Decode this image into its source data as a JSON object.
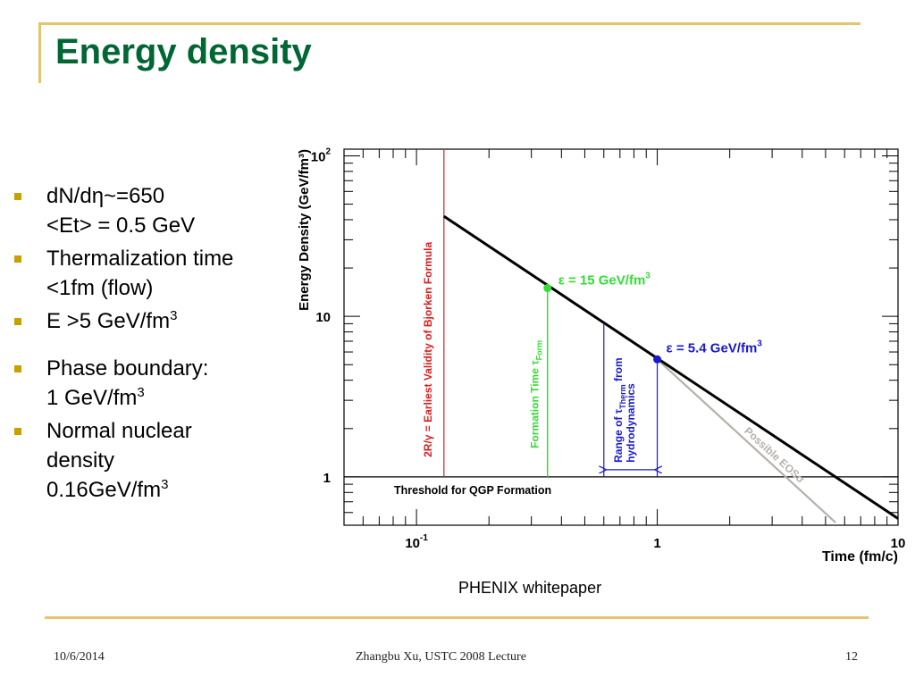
{
  "slide": {
    "title": "Energy density",
    "caption": "PHENIX whitepaper",
    "footer": {
      "date": "10/6/2014",
      "center": "Zhangbu Xu, USTC 2008 Lecture",
      "page": "12"
    }
  },
  "bullets": [
    {
      "lines": [
        {
          "text": "dN/dη~=650"
        },
        {
          "text": "<Et> = 0.5 GeV"
        }
      ]
    },
    {
      "lines": [
        {
          "text": "Thermalization time"
        },
        {
          "text": "<1fm (flow)"
        }
      ]
    },
    {
      "lines": [
        {
          "text": "E >5 GeV/fm",
          "sup": "3"
        }
      ]
    },
    {
      "gap": true,
      "lines": [
        {
          "text": "Phase boundary:"
        },
        {
          "text": "1 GeV/fm",
          "sup": "3"
        }
      ]
    },
    {
      "lines": [
        {
          "text": "Normal nuclear"
        },
        {
          "text": "density"
        },
        {
          "text": "0.16GeV/fm",
          "sup": "3"
        }
      ]
    }
  ],
  "colors": {
    "title": "#006633",
    "rule": "#e4c56a",
    "bullet": "#c8a000",
    "red": "#d42020",
    "green": "#33dd33",
    "blue": "#1a1acc",
    "gray": "#b5b0aa",
    "black": "#000000"
  },
  "chart_data": {
    "type": "line",
    "x_scale": "log",
    "y_scale": "log",
    "xlim": [
      0.05,
      10
    ],
    "ylim": [
      0.5,
      110
    ],
    "grid": false,
    "xlabel": "Time (fm/c)",
    "ylabel": "Energy Density (GeV/fm³)",
    "x_ticks": [
      {
        "value": 0.1,
        "label": "10",
        "exp": "-1"
      },
      {
        "value": 1,
        "label": "1"
      },
      {
        "value": 10,
        "label": "10"
      }
    ],
    "y_ticks": [
      {
        "value": 1,
        "label": "1"
      },
      {
        "value": 10,
        "label": "10"
      },
      {
        "value": 100,
        "label": "10",
        "exp": "2"
      }
    ],
    "main_line": {
      "x": [
        0.13,
        10
      ],
      "y": [
        42,
        0.55
      ]
    },
    "eos_line": {
      "x": [
        1,
        5.5
      ],
      "y": [
        5.4,
        0.52
      ]
    },
    "threshold": {
      "y": 1,
      "label": "Threshold for QGP Formation"
    },
    "points": [
      {
        "id": "formation",
        "x": 0.35,
        "y": 15,
        "label_pre": "ε = 15 GeV/fm",
        "label_sup": "3"
      },
      {
        "id": "therm",
        "x": 1,
        "y": 5.4,
        "label_pre": "ε = 5.4 GeV/fm",
        "label_sup": "3"
      }
    ],
    "annotations": {
      "bjorken": {
        "x": 0.13,
        "text": "2R/γ = Earliest Validity of Bjorken Formula"
      },
      "formation": {
        "x": 0.35,
        "text_pre": "Formation Time τ",
        "text_sub": "Form"
      },
      "therm_range": {
        "x_from": 0.6,
        "x_to": 1.0,
        "text_pre": "Range of τ",
        "text_sub": "Therm",
        "text_post": " from",
        "text2": "hydrodynamics"
      },
      "eos": {
        "text": "Possible EOSσ"
      }
    }
  }
}
